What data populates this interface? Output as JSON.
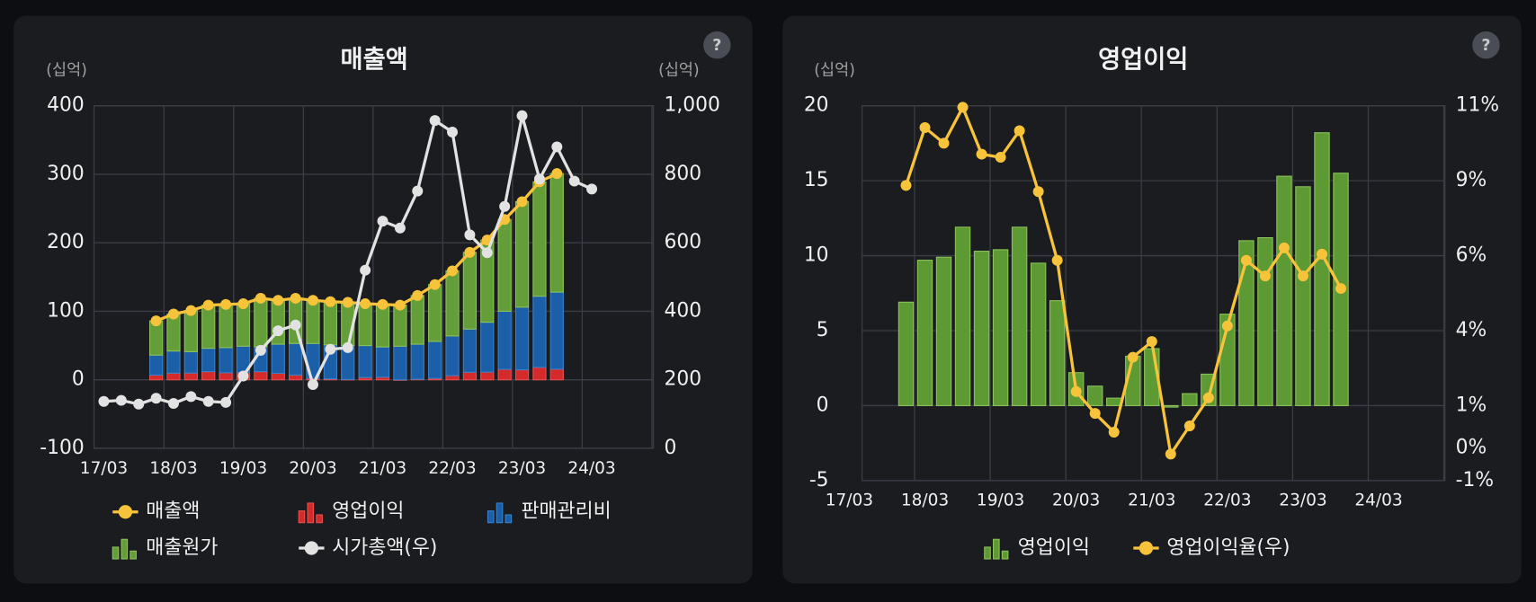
{
  "chart_data": [
    {
      "type": "combo",
      "title": "매출액",
      "help": "?",
      "y_unit": "(십억)",
      "y2_unit": "(십억)",
      "categories": [
        "17/03",
        null,
        null,
        null,
        "18/03",
        null,
        null,
        null,
        "19/03",
        null,
        null,
        null,
        "20/03",
        null,
        null,
        null,
        "21/03",
        null,
        null,
        null,
        "22/03",
        null,
        null,
        null,
        "23/03",
        null,
        null,
        null,
        "24/03"
      ],
      "ylim": [
        -100,
        400
      ],
      "yticks": [
        -100,
        0,
        100,
        200,
        300,
        400
      ],
      "y2lim": [
        0,
        1000
      ],
      "y2ticks": [
        0,
        200,
        400,
        600,
        800,
        {
          "value": 1000,
          "label": "1,000"
        }
      ],
      "grid": true,
      "series": [
        {
          "name": "매출액",
          "type": "line",
          "color": "#f7c33b",
          "values": [
            null,
            null,
            null,
            86,
            96,
            101,
            109,
            110,
            111,
            119,
            116,
            119,
            116,
            114,
            113,
            111,
            110,
            109,
            123,
            139,
            159,
            186,
            204,
            234,
            260,
            289,
            301,
            null,
            null
          ]
        },
        {
          "name": "영업이익",
          "type": "bar",
          "color": "#d42a2a",
          "values": [
            null,
            null,
            null,
            6.9,
            9.7,
            9.9,
            11.9,
            10.3,
            10.4,
            11.9,
            9.5,
            7.0,
            2.2,
            1.3,
            0.5,
            3.3,
            3.8,
            -0.1,
            0.8,
            2.1,
            6.1,
            11.0,
            11.2,
            15.3,
            14.6,
            18.2,
            15.5,
            null,
            null
          ]
        },
        {
          "name": "판매관리비",
          "type": "bar",
          "color": "#1a5fa8",
          "values": [
            null,
            null,
            null,
            29.1,
            32.3,
            31.1,
            34.1,
            36.7,
            38.6,
            36.1,
            42.5,
            46.0,
            50.8,
            49.7,
            49.5,
            46.7,
            44.2,
            49.0,
            51.2,
            53.9,
            57.9,
            63.0,
            72.8,
            84.7,
            91.4,
            103.8,
            112.5,
            null,
            null
          ]
        },
        {
          "name": "매출원가",
          "type": "bar",
          "color": "#649e38",
          "values": [
            null,
            null,
            null,
            50,
            54,
            60,
            63,
            63,
            62,
            71,
            64,
            66,
            63,
            63,
            63,
            61,
            62,
            60,
            71,
            83,
            95,
            112,
            120,
            134,
            154,
            167,
            173,
            null,
            null
          ]
        },
        {
          "name": "시가총액(우)",
          "type": "line",
          "axis": "y2",
          "color": "#e2e2e2",
          "values": [
            137,
            140,
            129,
            146,
            131,
            151,
            137,
            134,
            211,
            286,
            343,
            360,
            186,
            289,
            294,
            520,
            663,
            643,
            751,
            957,
            923,
            623,
            571,
            706,
            971,
            786,
            880,
            780,
            757
          ]
        }
      ]
    },
    {
      "type": "combo",
      "title": "영업이익",
      "help": "?",
      "y_unit": "(십억)",
      "categories": [
        "17/03",
        null,
        null,
        null,
        "18/03",
        null,
        null,
        null,
        "19/03",
        null,
        null,
        null,
        "20/03",
        null,
        null,
        null,
        "21/03",
        null,
        null,
        null,
        "22/03",
        null,
        null,
        null,
        "23/03",
        null,
        null,
        null,
        "24/03"
      ],
      "ylim": [
        -5,
        20
      ],
      "yticks": [
        -5,
        0,
        5,
        10,
        15,
        20
      ],
      "y2lim": [
        -1.05,
        10.95
      ],
      "y2ticks": [
        {
          "value": -1.05,
          "label": "-1%"
        },
        {
          "value": 0,
          "label": "0%"
        },
        {
          "value": 1.35,
          "label": "1%"
        },
        {
          "value": 3.75,
          "label": "4%"
        },
        {
          "value": 6.15,
          "label": "6%"
        },
        {
          "value": 8.55,
          "label": "9%"
        },
        {
          "value": 10.95,
          "label": "11%"
        }
      ],
      "grid": true,
      "series": [
        {
          "name": "영업이익",
          "type": "bar",
          "color": "#5e9a34",
          "values": [
            null,
            null,
            null,
            6.9,
            9.7,
            9.9,
            11.9,
            10.3,
            10.4,
            11.9,
            9.5,
            7.0,
            2.2,
            1.3,
            0.5,
            3.3,
            3.8,
            -0.1,
            0.8,
            2.1,
            6.1,
            11.0,
            11.2,
            15.3,
            14.6,
            18.2,
            15.5,
            null,
            null
          ]
        },
        {
          "name": "영업이익율(우)",
          "type": "line",
          "axis": "y2",
          "color": "#f7c33b",
          "values": [
            null,
            null,
            null,
            8.4,
            10.25,
            9.75,
            10.9,
            9.4,
            9.3,
            10.15,
            8.2,
            6.0,
            1.8,
            1.1,
            0.5,
            2.9,
            3.4,
            -0.2,
            0.7,
            1.6,
            3.9,
            6.0,
            5.5,
            6.4,
            5.5,
            6.2,
            5.1,
            null,
            null
          ]
        }
      ]
    }
  ]
}
